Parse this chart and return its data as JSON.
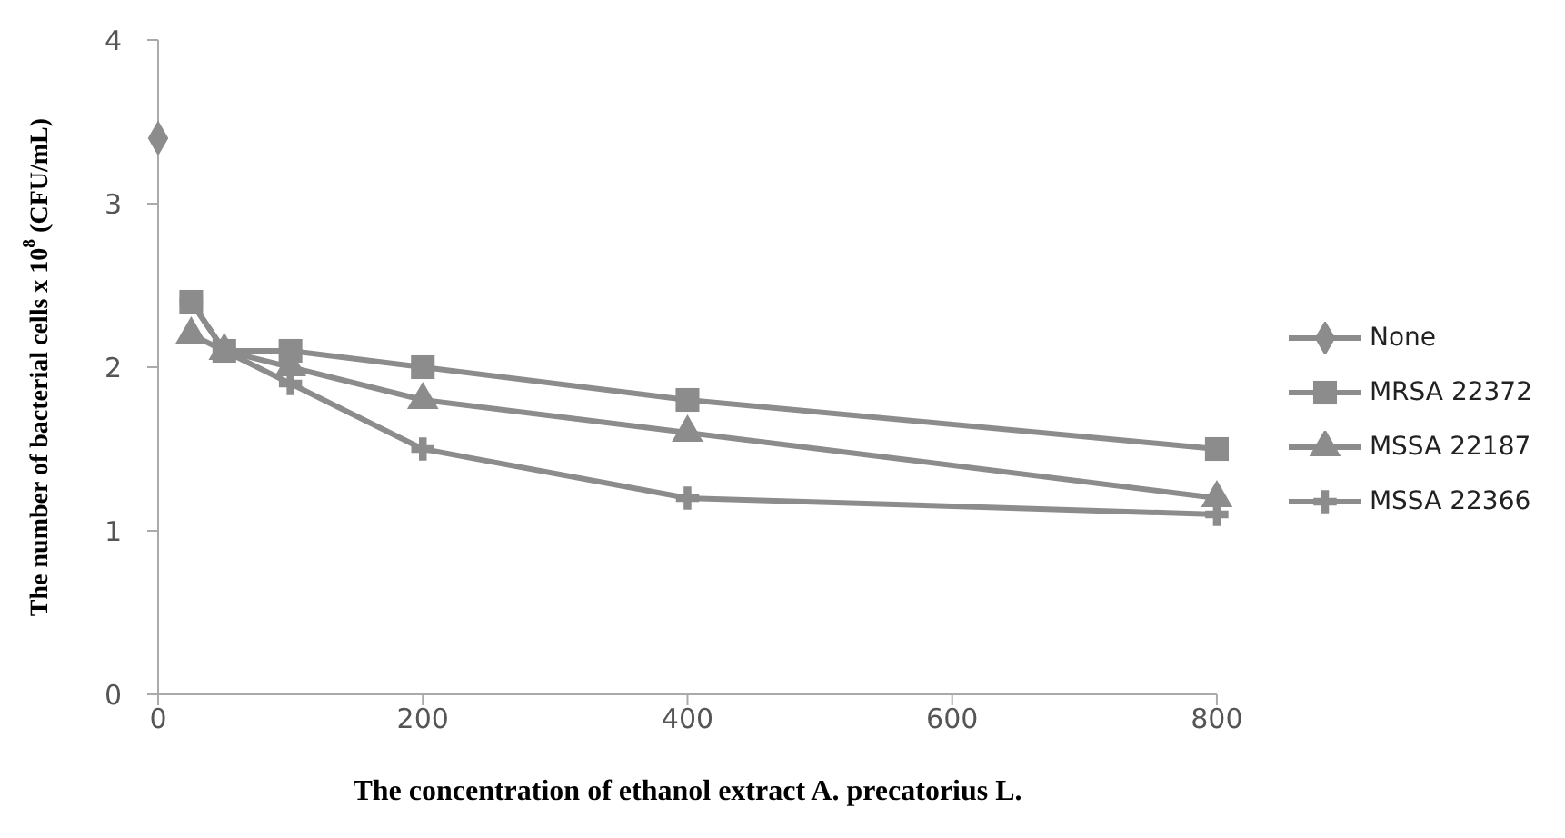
{
  "chart_data": {
    "type": "line",
    "xlabel": "The concentration of ethanol extract A. precatorius L.",
    "ylabel": "The number of bacterial cells x 10$^{8}$ (CFU/mL)",
    "xlim": [
      0,
      800
    ],
    "xticks": [
      0,
      200,
      400,
      600,
      800
    ],
    "ylim": [
      0,
      4
    ],
    "yticks": [
      0,
      1,
      2,
      3,
      4
    ],
    "grid": false,
    "legend": "right",
    "line_style": "solid",
    "series": [
      {
        "name": "None",
        "color": "#8c8c8c",
        "marker": "diamond",
        "x": [
          0
        ],
        "values": [
          3.4
        ]
      },
      {
        "name": "MRSA 22372",
        "color": "#8c8c8c",
        "marker": "square",
        "x": [
          25,
          50,
          100,
          200,
          400,
          800
        ],
        "values": [
          2.4,
          2.1,
          2.1,
          2.0,
          1.8,
          1.5
        ]
      },
      {
        "name": "MSSA 22187",
        "color": "#8c8c8c",
        "marker": "triangle",
        "x": [
          25,
          50,
          100,
          200,
          400,
          800
        ],
        "values": [
          2.2,
          2.1,
          2.0,
          1.8,
          1.6,
          1.2
        ]
      },
      {
        "name": "MSSA 22366",
        "color": "#8c8c8c",
        "marker": "cross",
        "x": [
          25,
          50,
          100,
          200,
          400,
          800
        ],
        "values": [
          2.4,
          2.1,
          1.9,
          1.5,
          1.2,
          1.1
        ]
      }
    ]
  }
}
